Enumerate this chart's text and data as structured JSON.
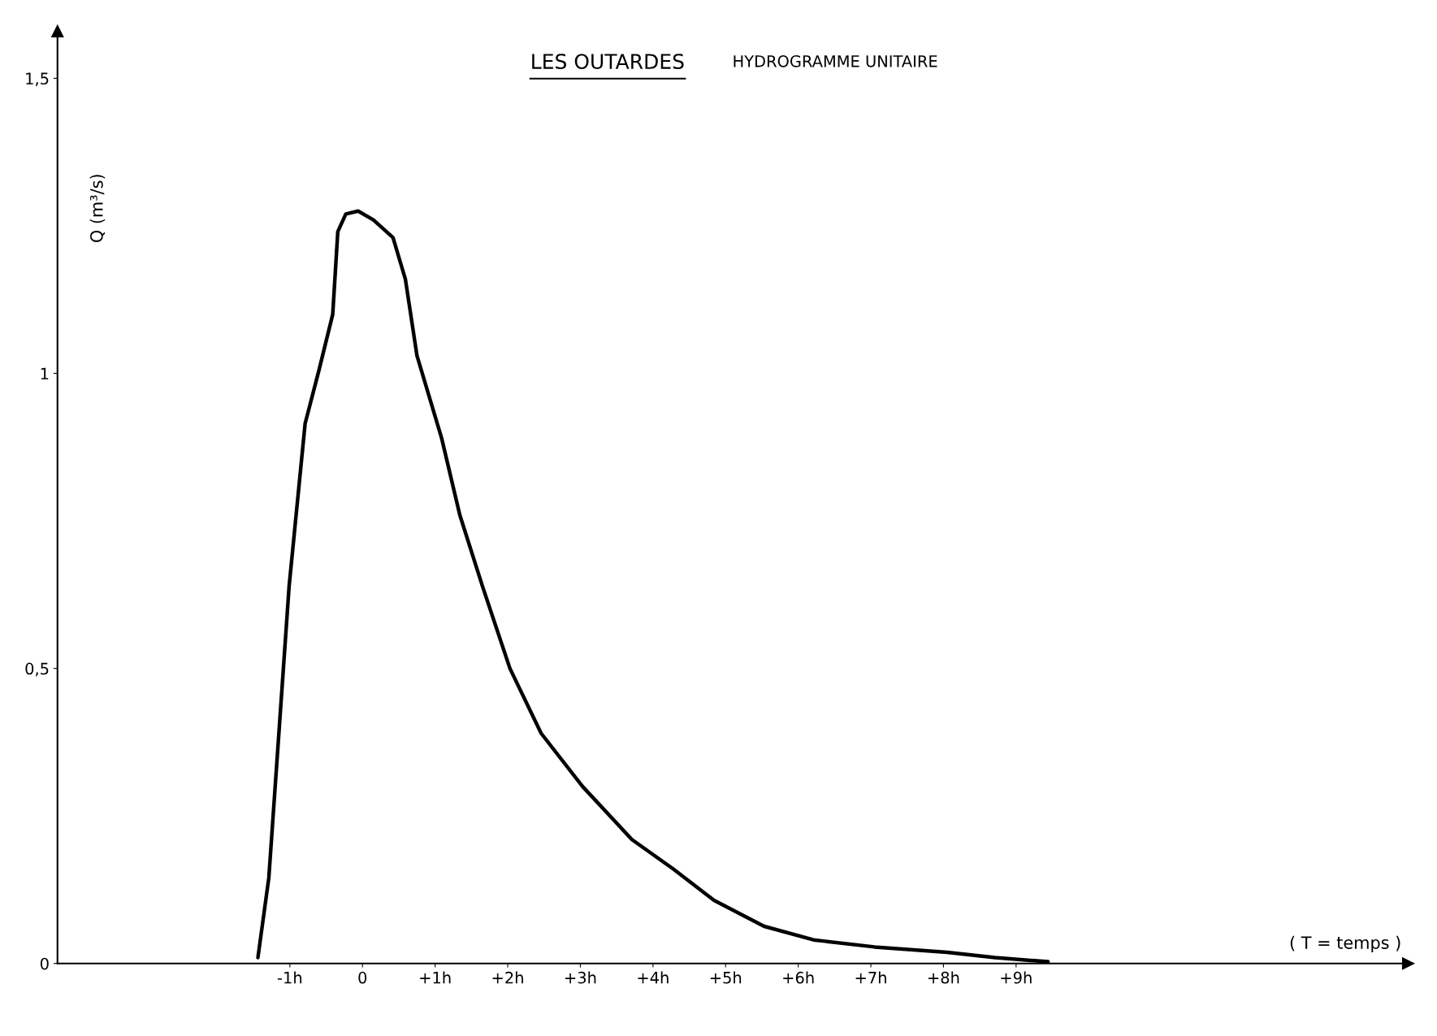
{
  "chart_data": {
    "type": "line",
    "title": "LES OUTARDES",
    "subtitle": "HYDROGRAMME UNITAIRE",
    "ylabel": "Q (m³/s)",
    "xlabel": "( T = temps )",
    "series": [
      {
        "color": "#000000",
        "x": [
          -1.44,
          -1.29,
          -1.14,
          -1.01,
          -0.79,
          -0.6,
          -0.41,
          -0.34,
          -0.23,
          -0.06,
          0.15,
          0.42,
          0.59,
          0.75,
          1.09,
          1.34,
          1.65,
          2.03,
          2.46,
          3.03,
          3.71,
          4.28,
          4.84,
          5.53,
          6.21,
          7.05,
          8.05,
          8.71,
          9.44
        ],
        "values": [
          0.01,
          0.145,
          0.41,
          0.64,
          0.915,
          1.005,
          1.1,
          1.24,
          1.27,
          1.275,
          1.26,
          1.23,
          1.16,
          1.03,
          0.89,
          0.76,
          0.64,
          0.5,
          0.39,
          0.3,
          0.21,
          0.16,
          0.107,
          0.063,
          0.04,
          0.028,
          0.019,
          0.01,
          0.003
        ]
      }
    ],
    "xlim": [
      -4.2,
      14.4
    ],
    "ylim": [
      0,
      1.58
    ],
    "xticks": [
      {
        "value": -1,
        "label": "-1h"
      },
      0,
      {
        "value": 1,
        "label": "+1h"
      },
      {
        "value": 2,
        "label": "+2h"
      },
      {
        "value": 3,
        "label": "+3h"
      },
      {
        "value": 4,
        "label": "+4h"
      },
      {
        "value": 5,
        "label": "+5h"
      },
      {
        "value": 6,
        "label": "+6h"
      },
      {
        "value": 7,
        "label": "+7h"
      },
      {
        "value": 8,
        "label": "+8h"
      },
      {
        "value": 9,
        "label": "+9h"
      }
    ],
    "yticks": [
      0,
      {
        "value": 0.5,
        "label": "0,5"
      },
      1,
      {
        "value": 1.5,
        "label": "1,5"
      }
    ],
    "grid": false,
    "legend": false,
    "marker": "none",
    "line_style": "solid"
  }
}
